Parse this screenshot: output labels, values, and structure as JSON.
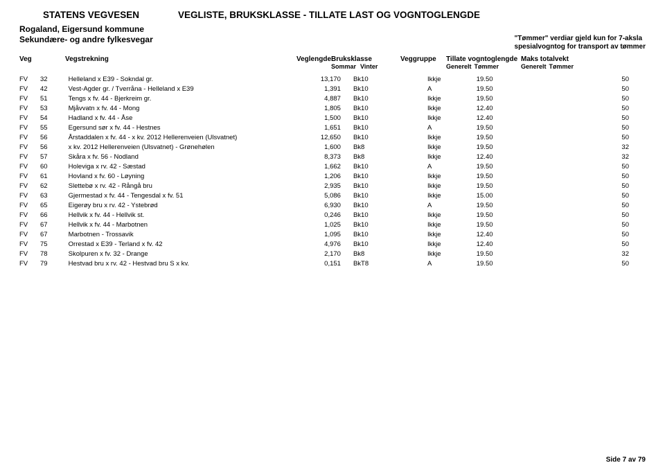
{
  "header": {
    "org": "STATENS VEGVESEN",
    "title": "VEGLISTE, BRUKSKLASSE - TILLATE LAST OG VOGNTOGLENGDE",
    "region": "Rogaland, Eigersund kommune",
    "sub": "Sekundære- og andre fylkesvegar",
    "note1": "\"Tømmer\" verdiar gjeld kun for 7-aksla",
    "note2": "spesialvogntog for transport av tømmer"
  },
  "cols": {
    "veg": "Veg",
    "strek": "Vegstrekning",
    "lengde": "Veglengde",
    "klasse": "Bruksklasse",
    "klasse_s": "Sommar",
    "klasse_v": "Vinter",
    "gruppe": "Veggruppe",
    "tillate": "Tillate vogntoglengde",
    "tillate_g": "Generelt",
    "tillate_t": "Tømmer",
    "maks": "Maks totalvekt",
    "maks_g": "Generelt",
    "maks_t": "Tømmer"
  },
  "rows": [
    {
      "v": "FV",
      "n": "32",
      "s": "Helleland x E39 - Sokndal gr.",
      "l": "13,170",
      "k1": "Bk10",
      "k2": "",
      "g": "Ikkje",
      "tg": "19.50",
      "tt": "",
      "mg": "",
      "mt": "50"
    },
    {
      "v": "FV",
      "n": "42",
      "s": "Vest-Agder gr. / Tverråna - Helleland x E39",
      "l": "1,391",
      "k1": "Bk10",
      "k2": "",
      "g": "A",
      "tg": "19.50",
      "tt": "",
      "mg": "",
      "mt": "50"
    },
    {
      "v": "FV",
      "n": "51",
      "s": "Tengs x fv. 44 - Bjerkreim gr.",
      "l": "4,887",
      "k1": "Bk10",
      "k2": "",
      "g": "Ikkje",
      "tg": "19.50",
      "tt": "",
      "mg": "",
      "mt": "50"
    },
    {
      "v": "FV",
      "n": "53",
      "s": "Mjåvvatn x fv. 44 - Mong",
      "l": "1,805",
      "k1": "Bk10",
      "k2": "",
      "g": "Ikkje",
      "tg": "12.40",
      "tt": "",
      "mg": "",
      "mt": "50"
    },
    {
      "v": "FV",
      "n": "54",
      "s": "Hadland x fv. 44 - Åse",
      "l": "1,500",
      "k1": "Bk10",
      "k2": "",
      "g": "Ikkje",
      "tg": "12.40",
      "tt": "",
      "mg": "",
      "mt": "50"
    },
    {
      "v": "FV",
      "n": "55",
      "s": "Egersund sør x fv. 44 - Hestnes",
      "l": "1,651",
      "k1": "Bk10",
      "k2": "",
      "g": "A",
      "tg": "19.50",
      "tt": "",
      "mg": "",
      "mt": "50"
    },
    {
      "v": "FV",
      "n": "56",
      "s": "Årstaddalen x fv. 44 - x kv. 2012 Hellerenveien (Ulsvatnet)",
      "l": "12,650",
      "k1": "Bk10",
      "k2": "",
      "g": "Ikkje",
      "tg": "19.50",
      "tt": "",
      "mg": "",
      "mt": "50"
    },
    {
      "v": "FV",
      "n": "56",
      "s": "x kv. 2012 Hellerenveien (Ulsvatnet) - Grønehølen",
      "l": "1,600",
      "k1": "Bk8",
      "k2": "",
      "g": "Ikkje",
      "tg": "19.50",
      "tt": "",
      "mg": "",
      "mt": "32"
    },
    {
      "v": "FV",
      "n": "57",
      "s": "Skåra x fv. 56 - Nodland",
      "l": "8,373",
      "k1": "Bk8",
      "k2": "",
      "g": "Ikkje",
      "tg": "12.40",
      "tt": "",
      "mg": "",
      "mt": "32"
    },
    {
      "v": "FV",
      "n": "60",
      "s": "Holeviga x rv. 42 - Sæstad",
      "l": "1,662",
      "k1": "Bk10",
      "k2": "",
      "g": "A",
      "tg": "19.50",
      "tt": "",
      "mg": "",
      "mt": "50"
    },
    {
      "v": "FV",
      "n": "61",
      "s": "Hovland x fv. 60 - Løyning",
      "l": "1,206",
      "k1": "Bk10",
      "k2": "",
      "g": "Ikkje",
      "tg": "19.50",
      "tt": "",
      "mg": "",
      "mt": "50"
    },
    {
      "v": "FV",
      "n": "62",
      "s": "Slettebø x rv. 42 - Rångå bru",
      "l": "2,935",
      "k1": "Bk10",
      "k2": "",
      "g": "Ikkje",
      "tg": "19.50",
      "tt": "",
      "mg": "",
      "mt": "50"
    },
    {
      "v": "FV",
      "n": "63",
      "s": "Gjermestad x fv. 44 - Tengesdal x fv. 51",
      "l": "5,086",
      "k1": "Bk10",
      "k2": "",
      "g": "Ikkje",
      "tg": "15.00",
      "tt": "",
      "mg": "",
      "mt": "50"
    },
    {
      "v": "FV",
      "n": "65",
      "s": "Eigerøy bru x rv. 42 - Ystebrød",
      "l": "6,930",
      "k1": "Bk10",
      "k2": "",
      "g": "A",
      "tg": "19.50",
      "tt": "",
      "mg": "",
      "mt": "50"
    },
    {
      "v": "FV",
      "n": "66",
      "s": "Hellvik x fv. 44 - Hellvik st.",
      "l": "0,246",
      "k1": "Bk10",
      "k2": "",
      "g": "Ikkje",
      "tg": "19.50",
      "tt": "",
      "mg": "",
      "mt": "50"
    },
    {
      "v": "FV",
      "n": "67",
      "s": "Hellvik x fv. 44 - Marbotnen",
      "l": "1,025",
      "k1": "Bk10",
      "k2": "",
      "g": "Ikkje",
      "tg": "19.50",
      "tt": "",
      "mg": "",
      "mt": "50"
    },
    {
      "v": "FV",
      "n": "67",
      "s": "Marbotnen - Trossavik",
      "l": "1,095",
      "k1": "Bk10",
      "k2": "",
      "g": "Ikkje",
      "tg": "12.40",
      "tt": "",
      "mg": "",
      "mt": "50"
    },
    {
      "v": "FV",
      "n": "75",
      "s": "Orrestad x E39 - Terland x fv. 42",
      "l": "4,976",
      "k1": "Bk10",
      "k2": "",
      "g": "Ikkje",
      "tg": "12.40",
      "tt": "",
      "mg": "",
      "mt": "50"
    },
    {
      "v": "FV",
      "n": "78",
      "s": "Skolpuren x fv. 32 - Drange",
      "l": "2,170",
      "k1": "Bk8",
      "k2": "",
      "g": "Ikkje",
      "tg": "19.50",
      "tt": "",
      "mg": "",
      "mt": "32"
    },
    {
      "v": "FV",
      "n": "79",
      "s": "Hestvad bru x rv. 42 - Hestvad bru S x kv.",
      "l": "0,151",
      "k1": "BkT8",
      "k2": "",
      "g": "A",
      "tg": "19.50",
      "tt": "",
      "mg": "",
      "mt": "50"
    }
  ],
  "footer": "Side 7 av 79"
}
